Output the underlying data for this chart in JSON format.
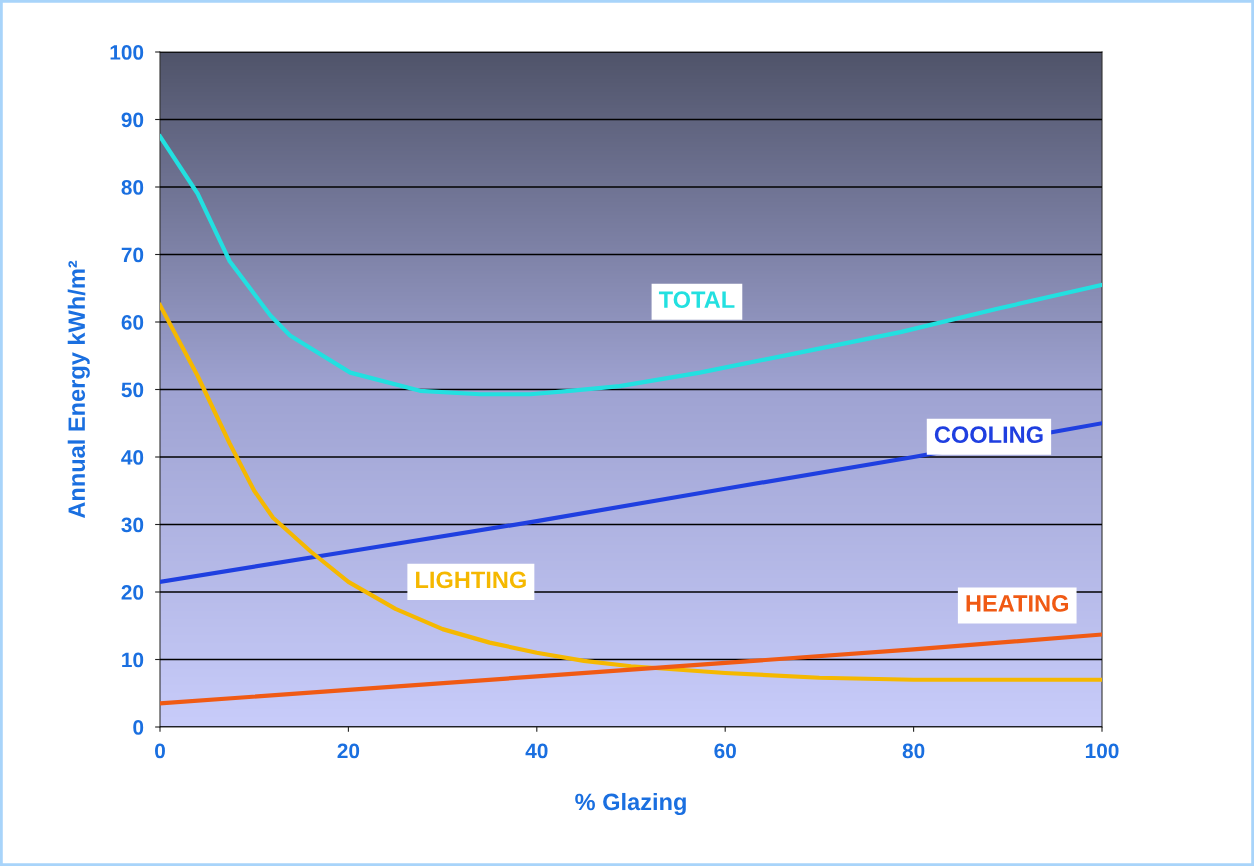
{
  "chart_data": {
    "type": "line",
    "xlabel": "% Glazing",
    "ylabel": "Annual Energy kWh/m²",
    "xlim": [
      0,
      100
    ],
    "xticks": [
      0,
      20,
      40,
      60,
      80,
      100
    ],
    "ylim": [
      0,
      100
    ],
    "yticks": [
      0,
      10,
      20,
      30,
      40,
      50,
      60,
      70,
      80,
      90,
      100
    ],
    "grid": "y",
    "legend": false,
    "marker": "none",
    "line_style": "solid",
    "series": [
      {
        "name": "TOTAL",
        "color": "#22e0e0",
        "x": [
          0,
          4,
          7.4,
          11.7,
          13.8,
          20.2,
          27.6,
          34,
          39.3,
          43.5,
          48.8,
          57.3,
          68,
          78.6,
          89,
          100
        ],
        "values": [
          87.5,
          79,
          69,
          61,
          58,
          52.5,
          49.8,
          49.3,
          49.3,
          49.8,
          50.5,
          52.5,
          55.5,
          58.5,
          62,
          65.5
        ]
      },
      {
        "name": "COOLING",
        "color": "#1f3fe0",
        "x": [
          0,
          20,
          40,
          60,
          80,
          100
        ],
        "values": [
          21.5,
          26,
          30.5,
          35.3,
          40,
          45
        ]
      },
      {
        "name": "LIGHTING",
        "color": "#f5b800",
        "x": [
          0,
          4,
          7.4,
          10,
          12,
          16,
          20,
          25,
          30,
          35,
          40,
          45,
          50,
          60,
          70,
          80,
          100
        ],
        "values": [
          62.5,
          52,
          42,
          35,
          31,
          26,
          21.5,
          17.5,
          14.5,
          12.5,
          11,
          9.8,
          9,
          8,
          7.3,
          7,
          7
        ]
      },
      {
        "name": "HEATING",
        "color": "#f05a14",
        "x": [
          0,
          20,
          40,
          60,
          80,
          100
        ],
        "values": [
          3.5,
          5.5,
          7.5,
          9.5,
          11.5,
          13.7
        ]
      }
    ]
  }
}
